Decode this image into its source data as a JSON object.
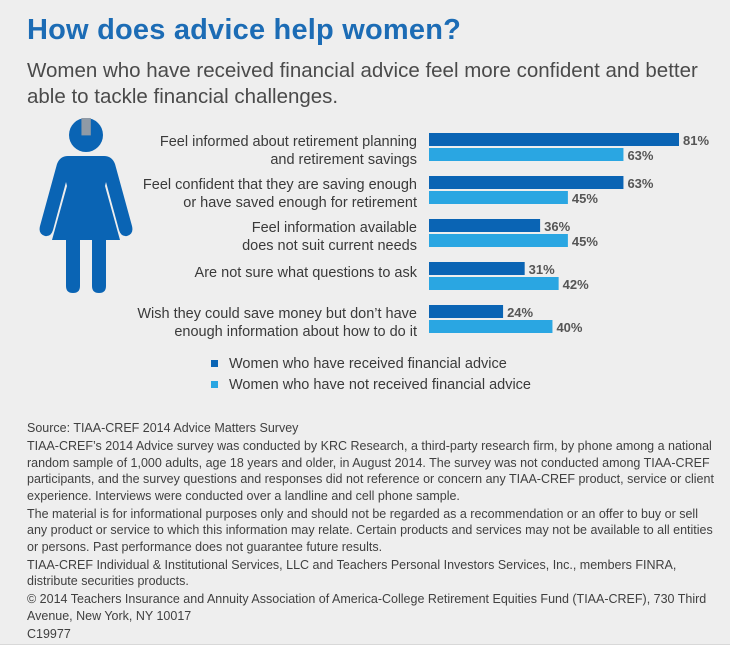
{
  "title": "How does advice help women?",
  "subtitle": "Women who have received financial advice feel more confident and better able to tackle financial challenges.",
  "colors": {
    "advised": "#0a64b4",
    "not_advised": "#2aa6e2",
    "title": "#1c6cb5",
    "figure": "#0a64b4",
    "dollar": "#8f9aa6"
  },
  "icons": [
    "woman-icon",
    "dollar-sign-icon"
  ],
  "chart_data": {
    "type": "bar",
    "orientation": "horizontal",
    "categories": [
      [
        "Feel informed about retirement planning",
        "and retirement savings"
      ],
      [
        "Feel confident that they are saving enough",
        "or have saved enough for retirement"
      ],
      [
        "Feel information available",
        "does not suit current needs"
      ],
      [
        "Are not sure what questions to ask"
      ],
      [
        "Wish they could save money but don’t have",
        "enough information about how to do it"
      ]
    ],
    "series": [
      {
        "name": "Women who have received financial advice",
        "values": [
          81,
          63,
          36,
          31,
          24
        ],
        "labels": [
          "81%",
          "63%",
          "36%",
          "31%",
          "24%"
        ]
      },
      {
        "name": "Women who have not received financial advice",
        "values": [
          63,
          45,
          45,
          42,
          40
        ],
        "labels": [
          "63%",
          "45%",
          "45%",
          "42%",
          "40%"
        ]
      }
    ],
    "xlim": [
      0,
      100
    ],
    "grid": false,
    "legend": "bottom"
  },
  "footer": {
    "source": "Source: TIAA-CREF 2014 Advice Matters Survey",
    "paragraphs": [
      "TIAA-CREF’s 2014 Advice survey was conducted by KRC Research, a third-party research firm, by phone among a national random sample of 1,000 adults, age 18 years and older, in August 2014. The survey was not conducted among TIAA-CREF participants, and the survey questions and responses did not reference or concern any TIAA-CREF product, service or client experience. Interviews were conducted over a landline and cell phone sample.",
      "The material is for informational purposes only and should not be regarded as a recommendation or an offer to buy or sell any product or service to which this information may relate. Certain products and services may not be available to all entities or persons. Past performance does not guarantee future results.",
      "TIAA-CREF Individual & Institutional Services, LLC and Teachers Personal Investors Services, Inc., members FINRA, distribute securities products.",
      "© 2014 Teachers Insurance and Annuity Association of America-College Retirement Equities Fund (TIAA-CREF), 730 Third Avenue, New York, NY 10017",
      "C19977"
    ]
  }
}
